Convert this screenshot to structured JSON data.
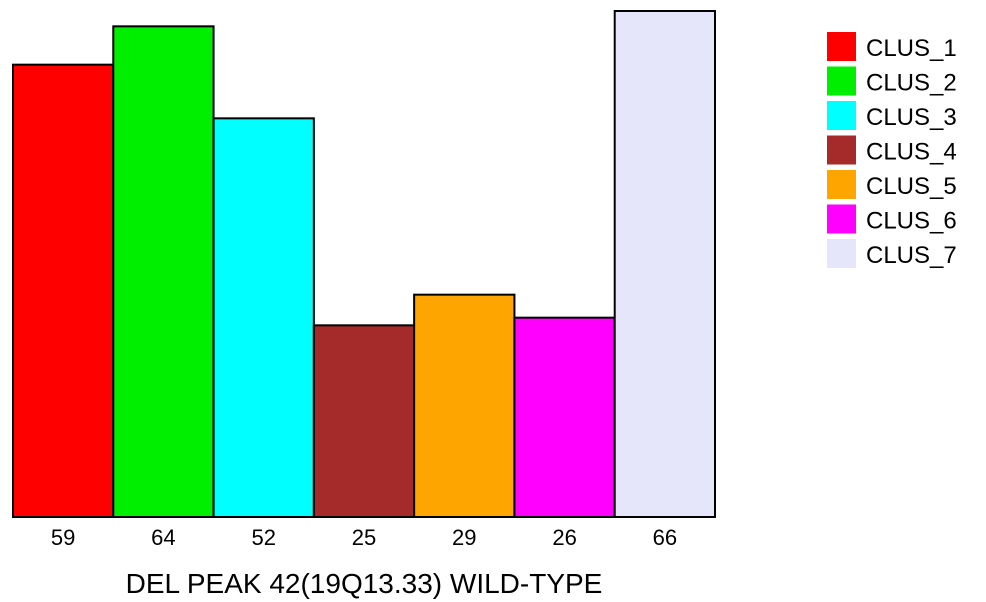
{
  "chart_data": {
    "type": "bar",
    "categories": [
      "CLUS_1",
      "CLUS_2",
      "CLUS_3",
      "CLUS_4",
      "CLUS_5",
      "CLUS_6",
      "CLUS_7"
    ],
    "values": [
      59,
      64,
      52,
      25,
      29,
      26,
      66
    ],
    "colors": [
      "#ff0000",
      "#00ee00",
      "#00ffff",
      "#a52a2a",
      "#ffa500",
      "#ff00ff",
      "#e6e6fa"
    ],
    "xlabel": "DEL PEAK 42(19Q13.33) WILD-TYPE",
    "ylabel": "",
    "ylim": [
      0,
      66
    ],
    "legend": {
      "position": "top-right",
      "entries": [
        "CLUS_1",
        "CLUS_2",
        "CLUS_3",
        "CLUS_4",
        "CLUS_5",
        "CLUS_6",
        "CLUS_7"
      ]
    },
    "grid": false
  }
}
